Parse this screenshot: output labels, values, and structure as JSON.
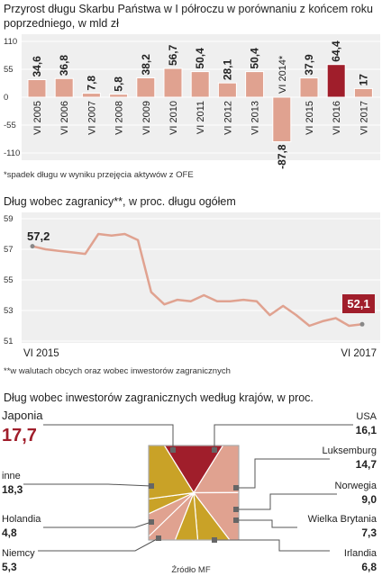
{
  "chart1": {
    "title_line1": "Przyrost długu Skarbu Państwa w I półroczu w porównaniu z końcem roku",
    "title_line2": "poprzedniego, w mld zł",
    "footnote": "*spadek długu w wyniku przejęcia aktywów z OFE"
  },
  "chart2": {
    "title": "Dług wobec zagranicy**, w proc. długu ogółem",
    "footnote": "**w walutach obcych oraz wobec inwestorów zagranicznych",
    "start_label": "57,2",
    "end_label": "52,1",
    "x_start": "VI 2015",
    "x_end": "VI 2017"
  },
  "chart3": {
    "title": "Dług wobec inwestorów zagranicznych według krajów, w proc.",
    "source": "Źródło MF"
  },
  "colors": {
    "bar": "#e0a290",
    "bar_highlight": "#a01e2b",
    "line": "#e0a290",
    "panel": "#efefef",
    "label_box": "#a01e2b",
    "pie_dark_red": "#a01e2b",
    "pie_salmon": "#e0a290",
    "pie_gold": "#c9a227"
  },
  "chart_data": [
    {
      "type": "bar",
      "title": "Przyrost długu Skarbu Państwa w I półroczu w porównaniu z końcem roku poprzedniego, w mld zł",
      "categories": [
        "VI 2005",
        "VI 2006",
        "VI 2007",
        "VI 2008",
        "VI 2009",
        "VI 2010",
        "VI 2011",
        "VI 2012",
        "VI 2013",
        "VI 2014*",
        "VI 2015",
        "VI 2016",
        "VI 2017"
      ],
      "values": [
        34.6,
        36.8,
        7.8,
        5.8,
        38.2,
        56.7,
        50.4,
        28.1,
        50.4,
        -87.8,
        37.9,
        64.4,
        17
      ],
      "value_labels": [
        "34,6",
        "36,8",
        "7,8",
        "5,8",
        "38,2",
        "56,7",
        "50,4",
        "28,1",
        "50,4",
        "-87,8",
        "37,9",
        "64,4",
        "17"
      ],
      "highlight": "VI 2016",
      "yticks": [
        "110",
        "55",
        "0",
        "-55",
        "-110"
      ],
      "ylim": [
        -110,
        110
      ],
      "grid": true
    },
    {
      "type": "line",
      "title": "Dług wobec zagranicy**, w proc. długu ogółem",
      "x_start": "VI 2015",
      "x_end": "VI 2017",
      "values": [
        57.2,
        57.0,
        56.9,
        56.8,
        56.7,
        58.0,
        57.9,
        58.0,
        57.6,
        54.2,
        53.4,
        53.7,
        53.6,
        54.0,
        53.6,
        53.6,
        53.7,
        53.6,
        52.7,
        53.3,
        52.7,
        52.0,
        52.3,
        52.5,
        52.0,
        52.1
      ],
      "yticks": [
        "59",
        "57",
        "55",
        "53",
        "51"
      ],
      "ylim": [
        51,
        59
      ],
      "grid": true
    },
    {
      "type": "pie",
      "title": "Dług wobec inwestorów zagranicznych według krajów, w proc.",
      "slices": [
        {
          "name": "Japonia",
          "value": 17.7,
          "label": "17,7"
        },
        {
          "name": "USA",
          "value": 16.1,
          "label": "16,1"
        },
        {
          "name": "Luksemburg",
          "value": 14.7,
          "label": "14,7"
        },
        {
          "name": "Norwegia",
          "value": 9.0,
          "label": "9,0"
        },
        {
          "name": "Wielka Brytania",
          "value": 7.3,
          "label": "7,3"
        },
        {
          "name": "Irlandia",
          "value": 6.8,
          "label": "6,8"
        },
        {
          "name": "Niemcy",
          "value": 5.3,
          "label": "5,3"
        },
        {
          "name": "Holandia",
          "value": 4.8,
          "label": "4,8"
        },
        {
          "name": "inne",
          "value": 18.3,
          "label": "18,3"
        }
      ]
    }
  ]
}
